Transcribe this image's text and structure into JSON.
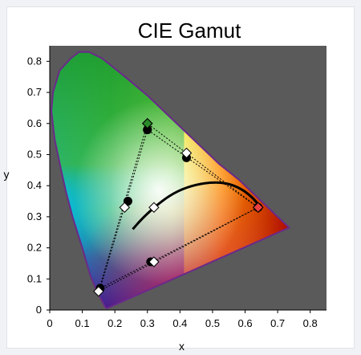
{
  "chart_data": {
    "type": "scatter",
    "title": "CIE Gamut",
    "xlabel": "x",
    "ylabel": "y",
    "xlim": [
      0,
      0.85
    ],
    "ylim": [
      0,
      0.85
    ],
    "xticks": [
      "0",
      "0.1",
      "0.2",
      "0.3",
      "0.4",
      "0.5",
      "0.6",
      "0.7",
      "0.8"
    ],
    "yticks": [
      "0",
      "0.1",
      "0.2",
      "0.3",
      "0.4",
      "0.5",
      "0.6",
      "0.7",
      "0.8"
    ],
    "grid": false,
    "background_color": "#5a5a5a",
    "spectral_locus": [
      [
        0.175,
        0.005
      ],
      [
        0.17,
        0.01
      ],
      [
        0.16,
        0.03
      ],
      [
        0.145,
        0.06
      ],
      [
        0.125,
        0.11
      ],
      [
        0.1,
        0.2
      ],
      [
        0.07,
        0.3
      ],
      [
        0.05,
        0.38
      ],
      [
        0.035,
        0.45
      ],
      [
        0.015,
        0.55
      ],
      [
        0.005,
        0.64
      ],
      [
        0.01,
        0.7
      ],
      [
        0.03,
        0.77
      ],
      [
        0.065,
        0.81
      ],
      [
        0.09,
        0.83
      ],
      [
        0.12,
        0.83
      ],
      [
        0.16,
        0.81
      ],
      [
        0.22,
        0.76
      ],
      [
        0.3,
        0.69
      ],
      [
        0.38,
        0.61
      ],
      [
        0.45,
        0.54
      ],
      [
        0.52,
        0.47
      ],
      [
        0.58,
        0.42
      ],
      [
        0.64,
        0.36
      ],
      [
        0.7,
        0.3
      ],
      [
        0.735,
        0.265
      ]
    ],
    "series": [
      {
        "marker": "filled-circle",
        "color": "#000000",
        "line_style": "dashed",
        "points": [
          [
            0.3,
            0.58
          ],
          [
            0.155,
            0.07
          ],
          [
            0.64,
            0.33
          ],
          [
            0.3,
            0.58
          ]
        ]
      },
      {
        "marker": "open-diamond",
        "color": "#000000",
        "line_style": "dashed",
        "points": [
          [
            0.3,
            0.6
          ],
          [
            0.15,
            0.06
          ],
          [
            0.64,
            0.33
          ],
          [
            0.3,
            0.6
          ]
        ]
      },
      {
        "marker": "filled-circle",
        "color": "#000000",
        "points": [
          [
            0.42,
            0.49
          ],
          [
            0.24,
            0.35
          ],
          [
            0.31,
            0.155
          ]
        ]
      },
      {
        "marker": "open-diamond",
        "color": "#ffffff",
        "points": [
          [
            0.42,
            0.505
          ],
          [
            0.23,
            0.33
          ],
          [
            0.32,
            0.155
          ],
          [
            0.32,
            0.33
          ]
        ]
      }
    ],
    "highlighted_markers": [
      {
        "label": "green-primary",
        "x": 0.3,
        "y": 0.6,
        "color": "#2a8a2a"
      },
      {
        "label": "red-primary",
        "x": 0.64,
        "y": 0.33,
        "color": "#f04040"
      }
    ],
    "planckian_locus": [
      [
        0.255,
        0.26
      ],
      [
        0.28,
        0.29
      ],
      [
        0.32,
        0.33
      ],
      [
        0.37,
        0.37
      ],
      [
        0.42,
        0.395
      ],
      [
        0.48,
        0.41
      ],
      [
        0.54,
        0.41
      ],
      [
        0.59,
        0.39
      ],
      [
        0.63,
        0.355
      ],
      [
        0.645,
        0.33
      ]
    ]
  }
}
